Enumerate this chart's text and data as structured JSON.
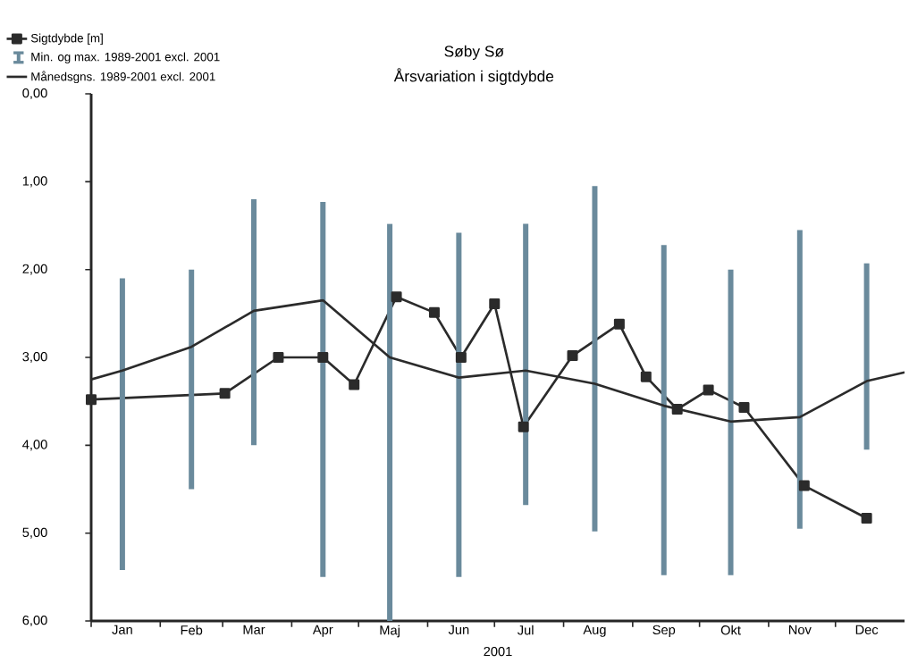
{
  "chart_data": {
    "type": "line",
    "title": "Søby Sø",
    "subtitle": "Årsvariation i sigtdybde",
    "xlabel": "2001",
    "xlim": [
      "2001-01-01",
      "2002-01-01"
    ],
    "xticks": [
      {
        "value": "2001-01-01",
        "label": null
      },
      {
        "value": "2001-01-15",
        "label": "Jan"
      },
      {
        "value": "2001-02-01",
        "label": null
      },
      {
        "value": "2001-02-15",
        "label": "Feb"
      },
      {
        "value": "2001-03-01",
        "label": null
      },
      {
        "value": "2001-03-15",
        "label": "Mar"
      },
      {
        "value": "2001-04-01",
        "label": null
      },
      {
        "value": "2001-04-15",
        "label": "Apr"
      },
      {
        "value": "2001-05-01",
        "label": null
      },
      {
        "value": "2001-05-15",
        "label": "Maj"
      },
      {
        "value": "2001-06-01",
        "label": null
      },
      {
        "value": "2001-06-15",
        "label": "Jun"
      },
      {
        "value": "2001-07-01",
        "label": null
      },
      {
        "value": "2001-07-15",
        "label": "Jul"
      },
      {
        "value": "2001-08-01",
        "label": null
      },
      {
        "value": "2001-08-15",
        "label": "Aug"
      },
      {
        "value": "2001-09-01",
        "label": null
      },
      {
        "value": "2001-09-15",
        "label": "Sep"
      },
      {
        "value": "2001-10-01",
        "label": null
      },
      {
        "value": "2001-10-15",
        "label": "Okt"
      },
      {
        "value": "2001-11-01",
        "label": null
      },
      {
        "value": "2001-11-15",
        "label": "Nov"
      },
      {
        "value": "2001-12-01",
        "label": null
      },
      {
        "value": "2001-12-15",
        "label": "Dec"
      }
    ],
    "ylim": [
      6,
      0
    ],
    "yticks": [
      {
        "value": 0,
        "label": "0,00"
      },
      {
        "value": 1,
        "label": "1,00"
      },
      {
        "value": 2,
        "label": "2,00"
      },
      {
        "value": 3,
        "label": "3,00"
      },
      {
        "value": 4,
        "label": "4,00"
      },
      {
        "value": 5,
        "label": "5,00"
      },
      {
        "value": 6,
        "label": "6,00"
      }
    ],
    "legend": "top left",
    "series": [
      {
        "name": "Sigtdybde [m]",
        "marker": "square",
        "color": "#2b2b2b",
        "x": [
          "2001-01-01",
          "2001-03-02",
          "2001-03-26",
          "2001-04-15",
          "2001-04-29",
          "2001-05-18",
          "2001-06-04",
          "2001-06-16",
          "2001-07-01",
          "2001-07-14",
          "2001-08-05",
          "2001-08-26",
          "2001-09-07",
          "2001-09-21",
          "2001-10-05",
          "2001-10-21",
          "2001-11-17",
          "2001-12-15"
        ],
        "values": [
          3.48,
          3.41,
          3.0,
          3.0,
          3.31,
          2.31,
          2.49,
          3.0,
          2.39,
          3.79,
          2.98,
          2.62,
          3.22,
          3.59,
          3.37,
          3.57,
          4.46,
          4.83
        ]
      },
      {
        "name": "Min. og max. 1989-2001 excl. 2001",
        "type": "bar",
        "color": "#6a8a9c",
        "x": [
          "2001-01-15",
          "2001-02-15",
          "2001-03-15",
          "2001-04-15",
          "2001-05-15",
          "2001-06-15",
          "2001-07-15",
          "2001-08-15",
          "2001-09-15",
          "2001-10-15",
          "2001-11-15",
          "2001-12-15"
        ],
        "base": [
          2.1,
          2.0,
          1.2,
          1.23,
          1.48,
          1.58,
          1.48,
          1.05,
          1.72,
          2.0,
          1.55,
          1.93
        ],
        "values": [
          3.32,
          2.5,
          2.8,
          4.27,
          4.52,
          3.92,
          3.2,
          3.93,
          3.76,
          3.48,
          3.4,
          2.12
        ]
      },
      {
        "name": "Månedsgns. 1989-2001 excl. 2001",
        "marker": "none",
        "color": "#2b2b2b",
        "x": [
          "2001-01-01",
          "2001-01-15",
          "2001-02-15",
          "2001-03-15",
          "2001-04-15",
          "2001-05-15",
          "2001-06-15",
          "2001-07-15",
          "2001-08-15",
          "2001-09-15",
          "2001-10-15",
          "2001-11-15",
          "2001-12-15",
          "2002-01-01"
        ],
        "values": [
          3.25,
          3.15,
          2.88,
          2.47,
          2.35,
          3.0,
          3.23,
          3.15,
          3.3,
          3.55,
          3.73,
          3.68,
          3.27,
          3.17
        ]
      }
    ]
  }
}
